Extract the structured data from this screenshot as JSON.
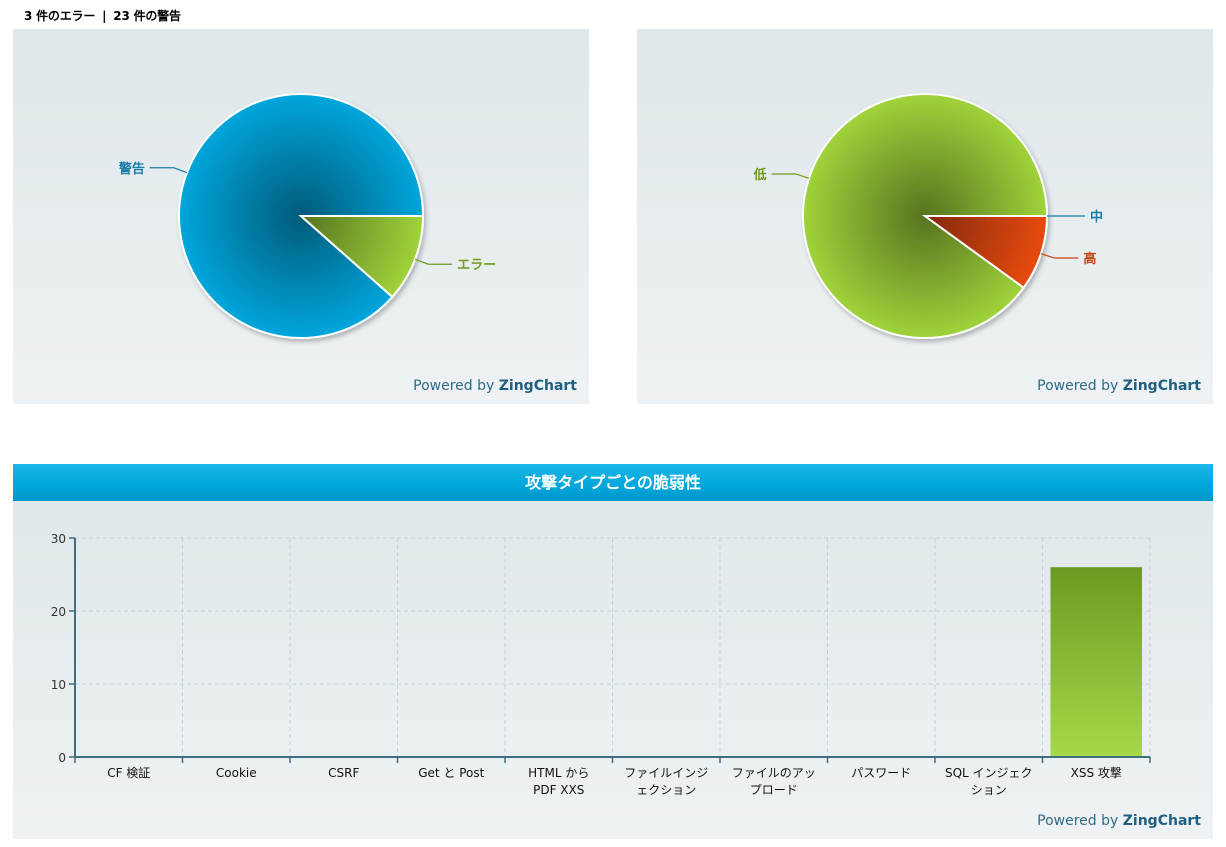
{
  "summary": {
    "errors_text": "3 件のエラー",
    "separator": "|",
    "warnings_text": "23 件の警告"
  },
  "powered_by": {
    "prefix": "Powered by",
    "brand": "ZingChart"
  },
  "chart_data": [
    {
      "type": "pie",
      "title": "",
      "series": [
        {
          "name": "警告",
          "value": 23,
          "color": "#00a6dc",
          "label_color": "#1a7ea8"
        },
        {
          "name": "エラー",
          "value": 3,
          "color": "#9fd33a",
          "label_color": "#6f9a1e"
        }
      ]
    },
    {
      "type": "pie",
      "title": "",
      "series": [
        {
          "name": "低",
          "value": 90,
          "color": "#9fd33a",
          "label_color": "#6f9a1e"
        },
        {
          "name": "高",
          "value": 10,
          "color": "#e84a10",
          "label_color": "#c8420f"
        },
        {
          "name": "中",
          "value": 0,
          "color": "#00a6dc",
          "label_color": "#1a7ea8"
        }
      ]
    },
    {
      "type": "bar",
      "title": "攻撃タイプごとの脆弱性",
      "categories": [
        "CF 検証",
        "Cookie",
        "CSRF",
        "Get と Post",
        "HTML から PDF XXS",
        "ファイルインジェクション",
        "ファイルのアップロード",
        "パスワード",
        "SQL インジェクション",
        "XSS 攻撃"
      ],
      "category_lines": [
        [
          "CF 検証"
        ],
        [
          "Cookie"
        ],
        [
          "CSRF"
        ],
        [
          "Get と Post"
        ],
        [
          "HTML から",
          "PDF XXS"
        ],
        [
          "ファイルインジ",
          "ェクション"
        ],
        [
          "ファイルのアッ",
          "プロード"
        ],
        [
          "パスワード"
        ],
        [
          "SQL インジェク",
          "ション"
        ],
        [
          "XSS 攻撃"
        ]
      ],
      "values": [
        0,
        0,
        0,
        0,
        0,
        0,
        0,
        0,
        0,
        26
      ],
      "ylim": [
        0,
        30
      ],
      "yticks": [
        0,
        10,
        20,
        30
      ],
      "grid": true,
      "bar_color_top": "#6b9a22",
      "bar_color_bottom": "#a6d948"
    }
  ]
}
